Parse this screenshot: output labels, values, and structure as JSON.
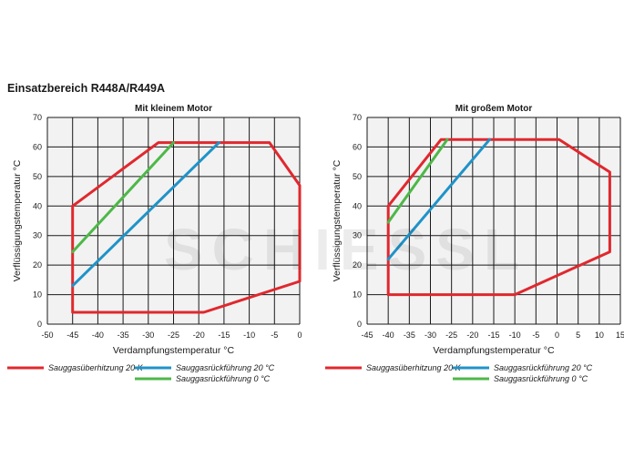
{
  "page": {
    "title": "Einsatzbereich R448A/R449A"
  },
  "watermark": {
    "text": "SCHIESSL"
  },
  "colors": {
    "superheat": "#e0282e",
    "return20": "#1f93c8",
    "return0": "#4db848",
    "grid": "#1a1a1a",
    "plot_bg": "#f2f2f2"
  },
  "chart_data": [
    {
      "type": "line",
      "title": "Mit kleinem Motor",
      "xlabel": "Verdampfungstemperatur °C",
      "ylabel": "Verflüssigungstemperatur °C",
      "xlim": [
        -50,
        0
      ],
      "ylim": [
        0,
        70
      ],
      "xticks": [
        -50,
        -45,
        -40,
        -35,
        -30,
        -25,
        -20,
        -15,
        -10,
        -5,
        0
      ],
      "yticks": [
        0,
        10,
        20,
        30,
        40,
        50,
        60,
        70
      ],
      "grid": true,
      "series": [
        {
          "name": "Sauggasüberhitzung 20 K",
          "color": "#e0282e",
          "points": [
            [
              -45,
              40
            ],
            [
              -28,
              61.5
            ],
            [
              -6,
              61.5
            ],
            [
              0,
              47
            ],
            [
              0,
              14.5
            ],
            [
              -19,
              4
            ],
            [
              -45,
              4
            ],
            [
              -45,
              40
            ]
          ]
        },
        {
          "name": "Sauggasrückführung 20 °C",
          "color": "#1f93c8",
          "points": [
            [
              -45,
              13
            ],
            [
              -16,
              61.5
            ]
          ]
        },
        {
          "name": "Sauggasrückführung 0 °C",
          "color": "#4db848",
          "points": [
            [
              -45,
              24.5
            ],
            [
              -25,
              61.5
            ]
          ]
        }
      ]
    },
    {
      "type": "line",
      "title": "Mit großem Motor",
      "xlabel": "Verdampfungstemperatur °C",
      "ylabel": "Verflüssigungstemperatur °C",
      "xlim": [
        -45,
        15
      ],
      "ylim": [
        0,
        70
      ],
      "xticks": [
        -45,
        -40,
        -35,
        -30,
        -25,
        -20,
        -15,
        -10,
        -5,
        0,
        5,
        10,
        15
      ],
      "yticks": [
        0,
        10,
        20,
        30,
        40,
        50,
        60,
        70
      ],
      "grid": true,
      "series": [
        {
          "name": "Sauggasüberhitzung 20 K",
          "color": "#e0282e",
          "points": [
            [
              -40,
              40
            ],
            [
              -27.5,
              62.5
            ],
            [
              0.5,
              62.5
            ],
            [
              12.5,
              51.5
            ],
            [
              12.5,
              24.5
            ],
            [
              -10,
              10
            ],
            [
              -40,
              10
            ],
            [
              -40,
              40
            ]
          ]
        },
        {
          "name": "Sauggasrückführung 20 °C",
          "color": "#1f93c8",
          "points": [
            [
              -40,
              22
            ],
            [
              -16,
              62.5
            ]
          ]
        },
        {
          "name": "Sauggasrückführung 0 °C",
          "color": "#4db848",
          "points": [
            [
              -40,
              34.5
            ],
            [
              -26,
              62.5
            ]
          ]
        }
      ]
    }
  ],
  "legend": {
    "items": [
      {
        "label": "Sauggasüberhitzung 20 K",
        "color": "#e0282e"
      },
      {
        "label": "Sauggasrückführung 20 °C",
        "color": "#1f93c8"
      },
      {
        "label": "Sauggasrückführung 0 °C",
        "color": "#4db848"
      }
    ]
  }
}
